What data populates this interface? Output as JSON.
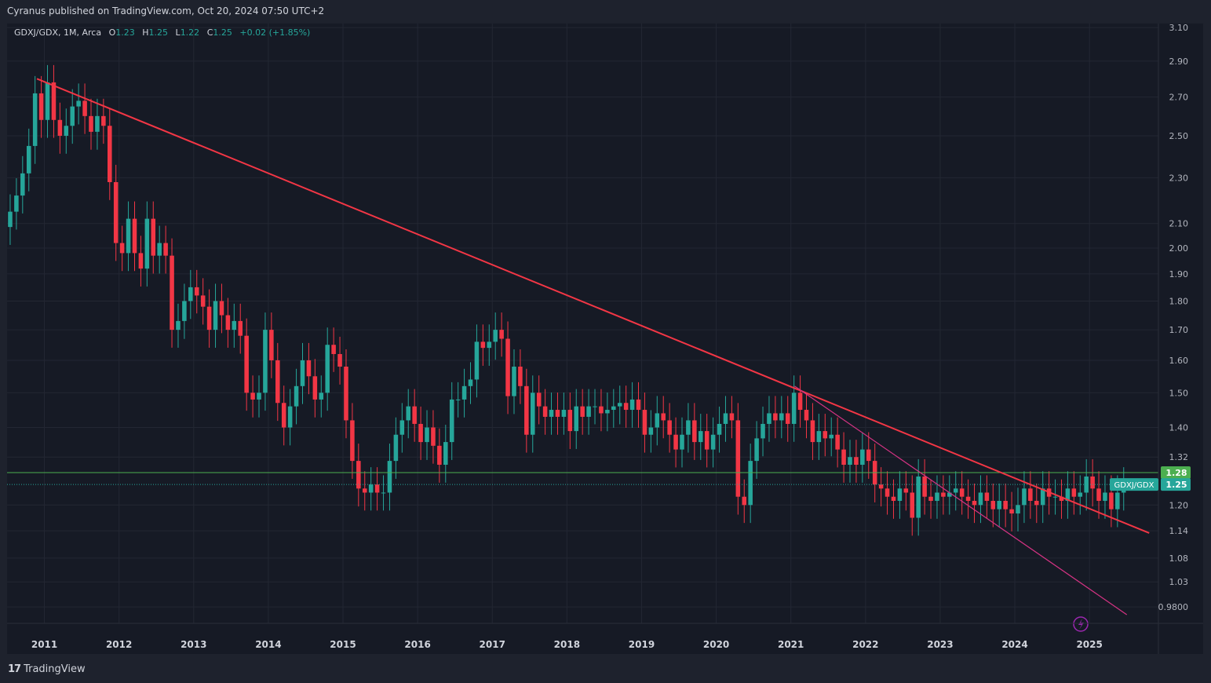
{
  "header": {
    "published": "Cyranus published on TradingView.com, Oct 20, 2024 07:50 UTC+2"
  },
  "legend": {
    "symbol": "GDXJ/GDX, 1M, Arca",
    "o_label": "O",
    "o": "1.23",
    "h_label": "H",
    "h": "1.25",
    "l_label": "L",
    "l": "1.22",
    "c_label": "C",
    "c": "1.25",
    "change": "+0.02 (+1.85%)"
  },
  "footer": {
    "logo_glyph": "17",
    "brand": "TradingView"
  },
  "price_tag": {
    "label": "GDXJ/GDX",
    "value": "1.25"
  },
  "level_tag": {
    "value": "1.28"
  },
  "colors": {
    "up": "#26a69a",
    "down": "#f23645",
    "trend": "#f23645",
    "trend2": "#d63384",
    "level": "#4caf50",
    "bg": "#161a25"
  },
  "chart_data": {
    "type": "candlestick",
    "scale": "log",
    "ylim": [
      0.95,
      3.12
    ],
    "xlim": [
      2010.5,
      2025.85
    ],
    "y_ticks": [
      {
        "v": 3.1,
        "label": "3.10"
      },
      {
        "v": 2.9,
        "label": "2.90"
      },
      {
        "v": 2.7,
        "label": "2.70"
      },
      {
        "v": 2.5,
        "label": "2.50"
      },
      {
        "v": 2.3,
        "label": "2.30"
      },
      {
        "v": 2.1,
        "label": "2.10"
      },
      {
        "v": 2.0,
        "label": "2.00"
      },
      {
        "v": 1.9,
        "label": "1.90"
      },
      {
        "v": 1.8,
        "label": "1.80"
      },
      {
        "v": 1.7,
        "label": "1.70"
      },
      {
        "v": 1.6,
        "label": "1.60"
      },
      {
        "v": 1.5,
        "label": "1.50"
      },
      {
        "v": 1.4,
        "label": "1.40"
      },
      {
        "v": 1.32,
        "label": "1.32"
      },
      {
        "v": 1.2,
        "label": "1.20"
      },
      {
        "v": 1.14,
        "label": "1.14"
      },
      {
        "v": 1.08,
        "label": "1.08"
      },
      {
        "v": 1.03,
        "label": "1.03"
      },
      {
        "v": 0.98,
        "label": "0.9800"
      }
    ],
    "x_ticks": [
      "2011",
      "2012",
      "2013",
      "2014",
      "2015",
      "2016",
      "2017",
      "2018",
      "2019",
      "2020",
      "2021",
      "2022",
      "2023",
      "2024",
      "2025"
    ],
    "first_candle": "2010-07",
    "closes": [
      2.15,
      2.22,
      2.32,
      2.45,
      2.72,
      2.58,
      2.78,
      2.58,
      2.5,
      2.55,
      2.65,
      2.68,
      2.6,
      2.52,
      2.6,
      2.55,
      2.28,
      2.02,
      1.98,
      2.12,
      1.98,
      1.92,
      2.12,
      1.97,
      2.02,
      1.97,
      1.7,
      1.73,
      1.8,
      1.85,
      1.82,
      1.78,
      1.7,
      1.8,
      1.75,
      1.7,
      1.73,
      1.68,
      1.5,
      1.48,
      1.5,
      1.7,
      1.6,
      1.47,
      1.4,
      1.46,
      1.52,
      1.6,
      1.55,
      1.48,
      1.5,
      1.65,
      1.62,
      1.58,
      1.42,
      1.31,
      1.24,
      1.23,
      1.25,
      1.23,
      1.23,
      1.31,
      1.38,
      1.42,
      1.46,
      1.41,
      1.36,
      1.4,
      1.35,
      1.3,
      1.36,
      1.48,
      1.48,
      1.52,
      1.54,
      1.66,
      1.64,
      1.66,
      1.7,
      1.67,
      1.49,
      1.58,
      1.52,
      1.38,
      1.5,
      1.46,
      1.43,
      1.45,
      1.43,
      1.45,
      1.39,
      1.46,
      1.43,
      1.46,
      1.46,
      1.44,
      1.45,
      1.46,
      1.47,
      1.45,
      1.48,
      1.45,
      1.38,
      1.4,
      1.44,
      1.42,
      1.38,
      1.34,
      1.38,
      1.42,
      1.36,
      1.39,
      1.34,
      1.38,
      1.41,
      1.44,
      1.42,
      1.22,
      1.2,
      1.31,
      1.37,
      1.41,
      1.44,
      1.42,
      1.44,
      1.41,
      1.5,
      1.45,
      1.42,
      1.36,
      1.39,
      1.37,
      1.38,
      1.34,
      1.3,
      1.32,
      1.3,
      1.34,
      1.31,
      1.25,
      1.24,
      1.22,
      1.21,
      1.24,
      1.23,
      1.17,
      1.27,
      1.22,
      1.21,
      1.23,
      1.22,
      1.23,
      1.24,
      1.22,
      1.21,
      1.2,
      1.23,
      1.21,
      1.19,
      1.21,
      1.19,
      1.18,
      1.2,
      1.24,
      1.21,
      1.2,
      1.24,
      1.22,
      1.22,
      1.21,
      1.24,
      1.22,
      1.23,
      1.27,
      1.24,
      1.21,
      1.23,
      1.19,
      1.23,
      1.25
    ],
    "trendline_main": {
      "x1": 2010.9,
      "y1": 2.8,
      "x2": 2025.8,
      "y2": 1.135
    },
    "trendline_secondary": {
      "x1": 2021.05,
      "y1": 1.52,
      "x2": 2025.5,
      "y2": 0.965
    },
    "horizontal_level": {
      "y": 1.28
    },
    "last_price_line": {
      "y": 1.25
    }
  }
}
